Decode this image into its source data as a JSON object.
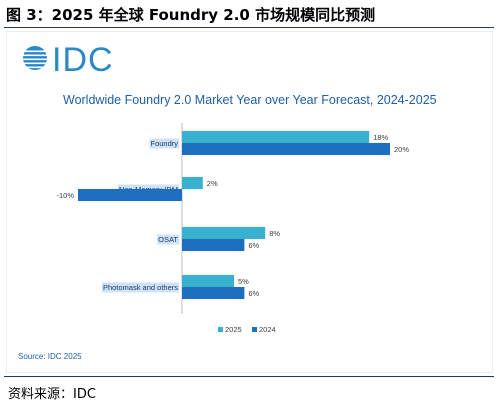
{
  "figure_title": "图 3：2025 年全球 Foundry 2.0 市场规模同比预测",
  "source_line": "资料来源：IDC",
  "logo_text": "IDC",
  "logo_icon": "idc-globe-logo",
  "colors": {
    "series_2025": "#38b1cf",
    "series_2024": "#1f6fc0",
    "title": "#1f5fa8",
    "logo": "#2a88c9"
  },
  "chart_data": {
    "type": "bar",
    "orientation": "horizontal",
    "title": "Worldwide Foundry 2.0 Market Year over Year Forecast, 2024-2025",
    "categories": [
      "Foundry",
      "Non-Memory IDM",
      "OSAT",
      "Photomask and others"
    ],
    "series": [
      {
        "name": "2025",
        "values": [
          18,
          2,
          8,
          5
        ],
        "labels": [
          "18%",
          "2%",
          "8%",
          "5%"
        ]
      },
      {
        "name": "2024",
        "values": [
          20,
          -10,
          6,
          6
        ],
        "labels": [
          "20%",
          "-10%",
          "6%",
          "6%"
        ]
      }
    ],
    "unit": "%",
    "legend_position": "bottom",
    "grid": false,
    "source": "Source: IDC 2025"
  }
}
